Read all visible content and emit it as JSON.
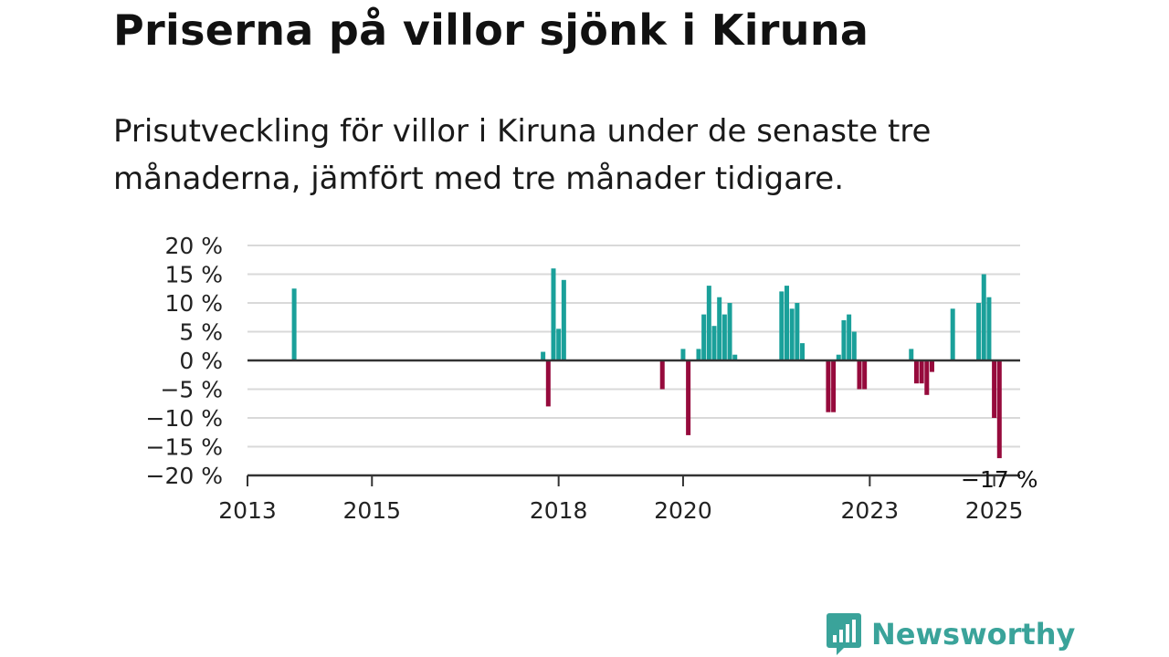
{
  "title": "Priserna på villor sjönk i Kiruna",
  "subtitle": "Prisutveckling för villor i Kiruna under de senaste tre månaderna, jämfört med tre månader tidigare.",
  "brand": {
    "name": "Newsworthy",
    "icon": "newsworthy-chart-bubble-icon"
  },
  "colors": {
    "positive": "#1aa09a",
    "negative": "#960a3c",
    "axis": "#333333",
    "grid": "#d9d9d9",
    "brand": "#3aa39a"
  },
  "chart_data": {
    "type": "bar",
    "title": "Priserna på villor sjönk i Kiruna",
    "subtitle": "Prisutveckling för villor i Kiruna under de senaste tre månaderna, jämfört med tre månader tidigare.",
    "xlabel": "",
    "ylabel": "",
    "x_ticks": [
      "2013",
      "2015",
      "2018",
      "2020",
      "2023",
      "2025"
    ],
    "y_ticks": [
      "20 %",
      "15 %",
      "10 %",
      "5 %",
      "0 %",
      "−5 %",
      "−10 %",
      "−15 %",
      "−20 %"
    ],
    "y_tick_values": [
      20,
      15,
      10,
      5,
      0,
      -5,
      -10,
      -15,
      -20
    ],
    "ylim": [
      -20,
      20
    ],
    "xlim": [
      "2013-01",
      "2025-06"
    ],
    "grid": true,
    "last_value_label": "−17 %",
    "series": [
      {
        "values": [
          [
            "2013-10",
            12.5
          ],
          [
            "2017-10",
            1.5
          ],
          [
            "2017-11",
            -8
          ],
          [
            "2017-12",
            16
          ],
          [
            "2018-01",
            5.5
          ],
          [
            "2018-02",
            14
          ],
          [
            "2019-09",
            -5
          ],
          [
            "2020-01",
            2
          ],
          [
            "2020-02",
            -13
          ],
          [
            "2020-04",
            2
          ],
          [
            "2020-05",
            8
          ],
          [
            "2020-06",
            13
          ],
          [
            "2020-07",
            6
          ],
          [
            "2020-08",
            11
          ],
          [
            "2020-09",
            8
          ],
          [
            "2020-10",
            10
          ],
          [
            "2020-11",
            1
          ],
          [
            "2021-08",
            12
          ],
          [
            "2021-09",
            13
          ],
          [
            "2021-10",
            9
          ],
          [
            "2021-11",
            10
          ],
          [
            "2021-12",
            3
          ],
          [
            "2022-05",
            -9
          ],
          [
            "2022-06",
            -9
          ],
          [
            "2022-07",
            1
          ],
          [
            "2022-08",
            7
          ],
          [
            "2022-09",
            8
          ],
          [
            "2022-10",
            5
          ],
          [
            "2022-11",
            -5
          ],
          [
            "2022-12",
            -5
          ],
          [
            "2023-09",
            2
          ],
          [
            "2023-10",
            -4
          ],
          [
            "2023-11",
            -4
          ],
          [
            "2023-12",
            -6
          ],
          [
            "2024-01",
            -2
          ],
          [
            "2024-05",
            9
          ],
          [
            "2024-10",
            10
          ],
          [
            "2024-11",
            15
          ],
          [
            "2024-12",
            11
          ],
          [
            "2025-01",
            -10
          ],
          [
            "2025-02",
            -17
          ]
        ]
      }
    ]
  }
}
